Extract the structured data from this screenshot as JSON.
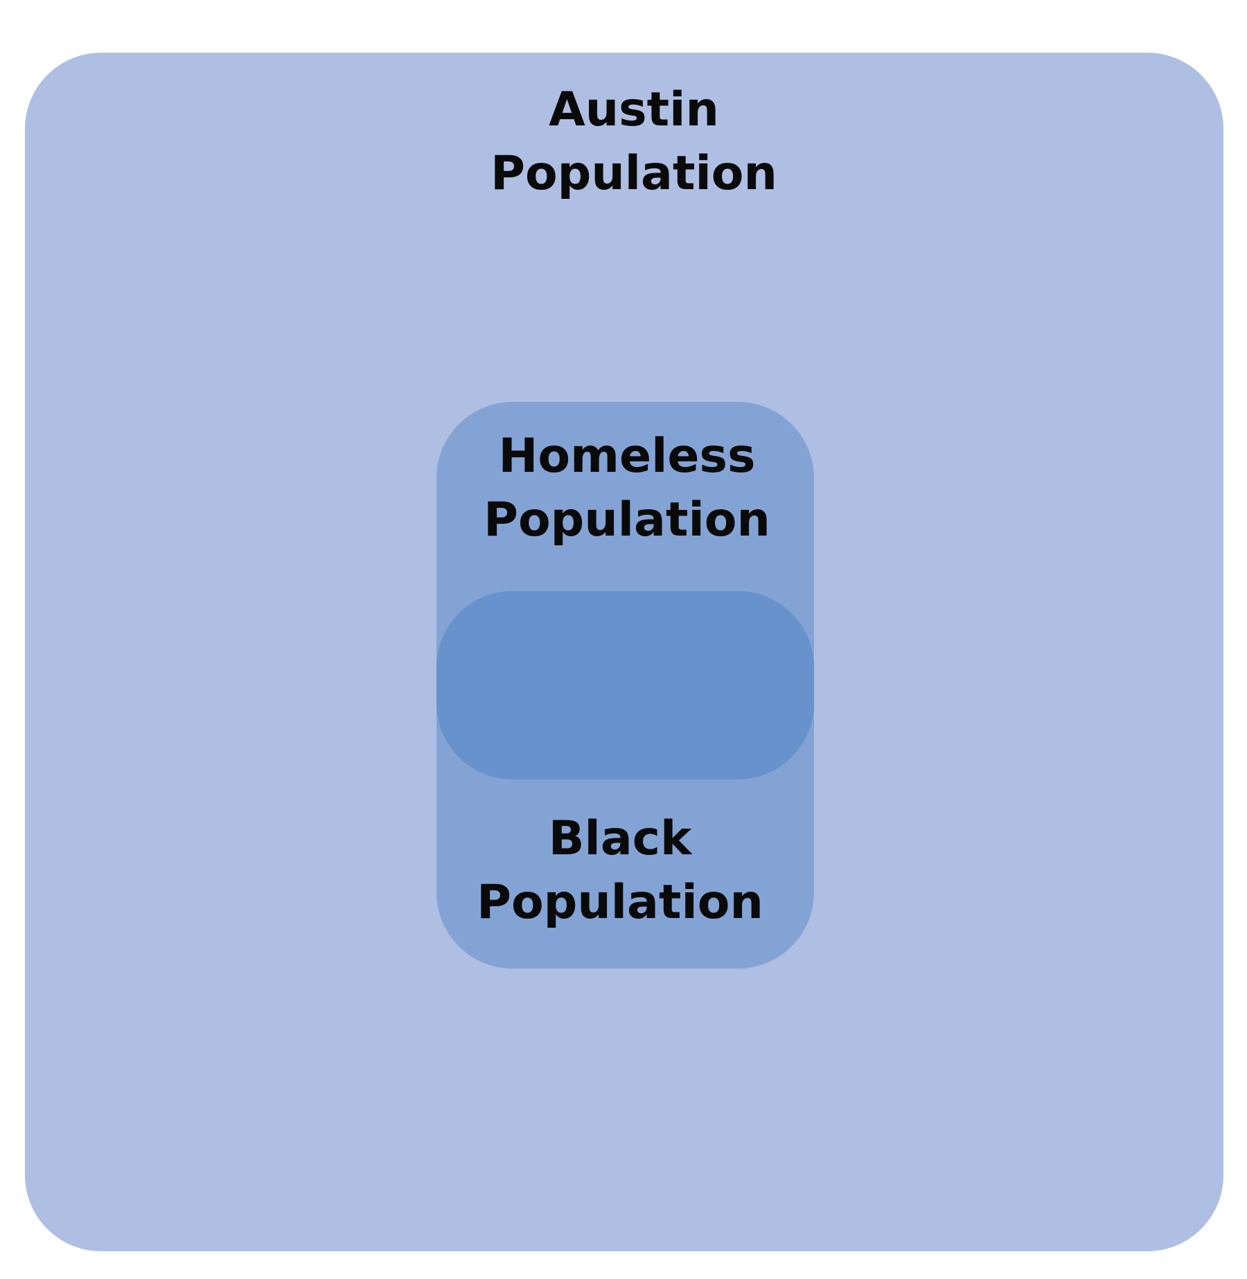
{
  "diagram": {
    "type": "nested-set-diagram",
    "colors": {
      "background": "#ffffff",
      "outer_fill": "#aebfe3",
      "middle_fill": "#84a3d5",
      "inner_fill": "#6792cb",
      "text": "#0a0a0a"
    },
    "sets": [
      {
        "id": "austin",
        "label_lines": [
          "Austin",
          "Population"
        ]
      },
      {
        "id": "homeless",
        "label_lines": [
          "Homeless",
          "Population"
        ]
      },
      {
        "id": "black",
        "label_lines": [
          "Black",
          "Population"
        ]
      }
    ]
  }
}
